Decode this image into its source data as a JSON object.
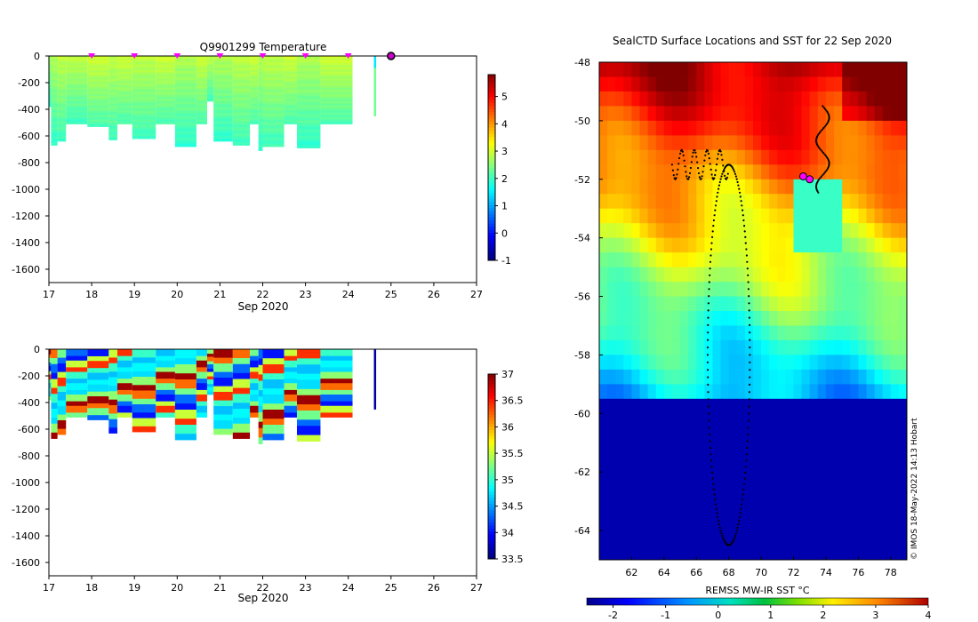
{
  "chart_data": [
    {
      "type": "heatmap",
      "title": "Q9901299  Temperature",
      "xlabel": "Sep 2020",
      "ylabel": "",
      "x_ticks": [
        "17",
        "18",
        "19",
        "20",
        "21",
        "22",
        "23",
        "24",
        "25",
        "26",
        "27"
      ],
      "x_range": [
        17,
        27
      ],
      "y_ticks": [
        "0",
        "-200",
        "-400",
        "-600",
        "-800",
        "-1000",
        "-1200",
        "-1400",
        "-1600"
      ],
      "y_range": [
        -1700,
        0
      ],
      "colorbar": {
        "min": -1,
        "max": 5.8,
        "ticks": [
          "5",
          "4",
          "3",
          "2",
          "1",
          "0",
          "-1"
        ]
      },
      "profile_markers": [
        18,
        19,
        20,
        21,
        22,
        23,
        24
      ],
      "current_marker": 25,
      "profiles": [
        {
          "t": 17.0,
          "d": 380,
          "v": 2.0
        },
        {
          "t": 17.05,
          "d": 670,
          "v": 2.1
        },
        {
          "t": 17.2,
          "d": 640,
          "v": 2.2
        },
        {
          "t": 17.4,
          "d": 510,
          "v": 2.2
        },
        {
          "t": 17.9,
          "d": 530,
          "v": 2.3
        },
        {
          "t": 18.4,
          "d": 630,
          "v": 2.2
        },
        {
          "t": 18.6,
          "d": 510,
          "v": 2.3
        },
        {
          "t": 18.95,
          "d": 620,
          "v": 2.2
        },
        {
          "t": 19.5,
          "d": 510,
          "v": 2.3
        },
        {
          "t": 19.95,
          "d": 680,
          "v": 2.1
        },
        {
          "t": 20.45,
          "d": 510,
          "v": 2.3
        },
        {
          "t": 20.7,
          "d": 340,
          "v": 2.2
        },
        {
          "t": 20.85,
          "d": 640,
          "v": 2.1
        },
        {
          "t": 21.3,
          "d": 670,
          "v": 2.2
        },
        {
          "t": 21.7,
          "d": 510,
          "v": 2.3
        },
        {
          "t": 21.9,
          "d": 710,
          "v": 2.1
        },
        {
          "t": 22.0,
          "d": 680,
          "v": 2.2
        },
        {
          "t": 22.5,
          "d": 510,
          "v": 2.3
        },
        {
          "t": 22.8,
          "d": 690,
          "v": 2.1
        },
        {
          "t": 23.35,
          "d": 510,
          "v": 2.3
        },
        {
          "t": 24.6,
          "d": 450,
          "v": 2.4
        }
      ]
    },
    {
      "type": "heatmap",
      "title": "",
      "xlabel": "Sep 2020",
      "ylabel": "",
      "x_ticks": [
        "17",
        "18",
        "19",
        "20",
        "21",
        "22",
        "23",
        "24",
        "25",
        "26",
        "27"
      ],
      "x_range": [
        17,
        27
      ],
      "y_ticks": [
        "0",
        "-200",
        "-400",
        "-600",
        "-800",
        "-1000",
        "-1200",
        "-1400",
        "-1600"
      ],
      "y_range": [
        -1700,
        0
      ],
      "colorbar": {
        "min": 33.5,
        "max": 37,
        "ticks": [
          "37",
          "36.5",
          "36",
          "35.5",
          "35",
          "34.5",
          "34",
          "33.5"
        ]
      },
      "profiles": [
        {
          "t": 17.0,
          "d": 380,
          "v": 34.7
        },
        {
          "t": 17.05,
          "d": 670,
          "v": 34.7
        },
        {
          "t": 17.2,
          "d": 640,
          "v": 34.7
        },
        {
          "t": 17.4,
          "d": 510,
          "v": 34.7
        },
        {
          "t": 17.9,
          "d": 530,
          "v": 34.7
        },
        {
          "t": 18.4,
          "d": 630,
          "v": 34.7
        },
        {
          "t": 18.6,
          "d": 510,
          "v": 34.7
        },
        {
          "t": 18.95,
          "d": 620,
          "v": 34.7
        },
        {
          "t": 19.5,
          "d": 510,
          "v": 34.7
        },
        {
          "t": 19.95,
          "d": 680,
          "v": 34.7
        },
        {
          "t": 20.45,
          "d": 510,
          "v": 34.7
        },
        {
          "t": 20.7,
          "d": 340,
          "v": 34.7
        },
        {
          "t": 20.85,
          "d": 640,
          "v": 34.7
        },
        {
          "t": 21.3,
          "d": 670,
          "v": 34.7
        },
        {
          "t": 21.7,
          "d": 510,
          "v": 34.7
        },
        {
          "t": 21.9,
          "d": 710,
          "v": 34.7
        },
        {
          "t": 22.0,
          "d": 680,
          "v": 34.7
        },
        {
          "t": 22.5,
          "d": 510,
          "v": 34.7
        },
        {
          "t": 22.8,
          "d": 690,
          "v": 34.7
        },
        {
          "t": 23.35,
          "d": 510,
          "v": 34.7
        },
        {
          "t": 24.6,
          "d": 450,
          "v": 33.6
        }
      ]
    },
    {
      "type": "heatmap",
      "title": "SealCTD Surface Locations and SST for 22 Sep 2020",
      "xlabel": "",
      "ylabel": "",
      "x_ticks": [
        "62",
        "64",
        "66",
        "68",
        "70",
        "72",
        "74",
        "76",
        "78"
      ],
      "x_range": [
        60,
        79
      ],
      "y_ticks": [
        "-48",
        "-50",
        "-52",
        "-54",
        "-56",
        "-58",
        "-60",
        "-62",
        "-64"
      ],
      "y_range": [
        -65,
        -48
      ],
      "colorbar": {
        "label": "REMSS MW-IR SST °C",
        "min": -2.5,
        "max": 4,
        "ticks": [
          "-2",
          "-1",
          "0",
          "1",
          "2",
          "3",
          "4"
        ]
      },
      "ice_edge_lat": -59.5,
      "seal_positions": [
        [
          72.6,
          -51.9
        ],
        [
          73.0,
          -52.0
        ]
      ],
      "credit": "© IMOS 18-May-2022 14:13 Hobart"
    }
  ]
}
